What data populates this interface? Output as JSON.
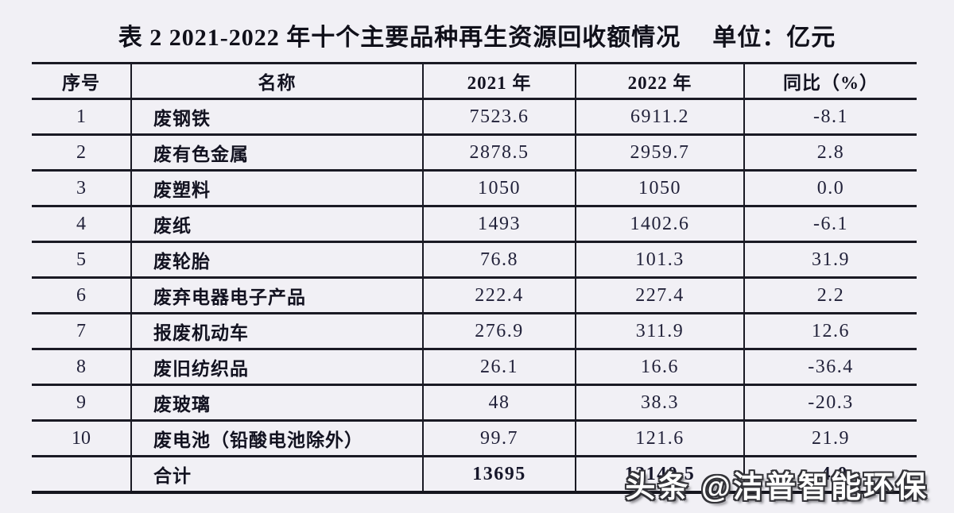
{
  "title": {
    "text": "表 2 2021-2022 年十个主要品种再生资源回收额情况",
    "unit": "单位：亿元"
  },
  "table": {
    "headers": {
      "no": "序号",
      "name": "名称",
      "y2021": "2021 年",
      "y2022": "2022 年",
      "yoy": "同比（%）"
    },
    "rows": [
      {
        "no": "1",
        "name": "废钢铁",
        "y2021": "7523.6",
        "y2022": "6911.2",
        "yoy": "-8.1"
      },
      {
        "no": "2",
        "name": "废有色金属",
        "y2021": "2878.5",
        "y2022": "2959.7",
        "yoy": "2.8"
      },
      {
        "no": "3",
        "name": "废塑料",
        "y2021": "1050",
        "y2022": "1050",
        "yoy": "0.0"
      },
      {
        "no": "4",
        "name": "废纸",
        "y2021": "1493",
        "y2022": "1402.6",
        "yoy": "-6.1"
      },
      {
        "no": "5",
        "name": "废轮胎",
        "y2021": "76.8",
        "y2022": "101.3",
        "yoy": "31.9"
      },
      {
        "no": "6",
        "name": "废弃电器电子产品",
        "y2021": "222.4",
        "y2022": "227.4",
        "yoy": "2.2"
      },
      {
        "no": "7",
        "name": "报废机动车",
        "y2021": "276.9",
        "y2022": "311.9",
        "yoy": "12.6"
      },
      {
        "no": "8",
        "name": "废旧纺织品",
        "y2021": "26.1",
        "y2022": "16.6",
        "yoy": "-36.4"
      },
      {
        "no": "9",
        "name": "废玻璃",
        "y2021": "48",
        "y2022": "38.3",
        "yoy": "-20.3"
      },
      {
        "no": "10",
        "name": "废电池（铅酸电池除外）",
        "y2021": "99.7",
        "y2022": "121.6",
        "yoy": "21.9"
      }
    ],
    "total": {
      "no": "",
      "name": "合计",
      "y2021": "13695",
      "y2022": "13140.5",
      "yoy": "-4.0"
    }
  },
  "watermark": {
    "text": "头条 @洁普智能环保"
  },
  "colors": {
    "background": "#f1f0f5",
    "grid_line": "#1a1a24",
    "heading_text": "#121220",
    "number_text": "#22223a",
    "watermark_fill": "#ffffff",
    "watermark_outline": "#333338"
  }
}
